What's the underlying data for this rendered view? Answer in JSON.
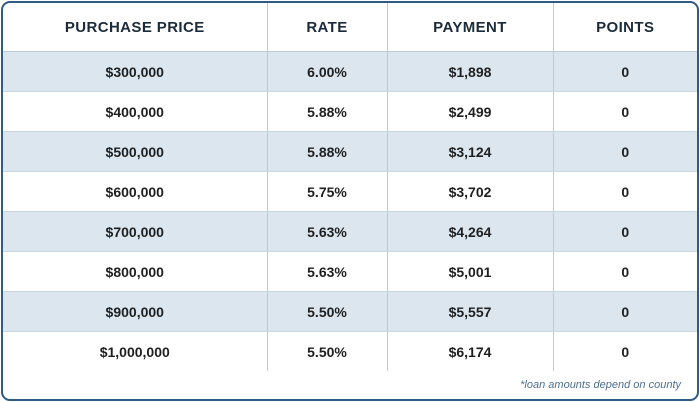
{
  "table": {
    "headers": [
      "PURCHASE PRICE",
      "RATE",
      "PAYMENT",
      "POINTS"
    ],
    "rows": [
      [
        "$300,000",
        "6.00%",
        "$1,898",
        "0"
      ],
      [
        "$400,000",
        "5.88%",
        "$2,499",
        "0"
      ],
      [
        "$500,000",
        "5.88%",
        "$3,124",
        "0"
      ],
      [
        "$600,000",
        "5.75%",
        "$3,702",
        "0"
      ],
      [
        "$700,000",
        "5.63%",
        "$4,264",
        "0"
      ],
      [
        "$800,000",
        "5.63%",
        "$5,001",
        "0"
      ],
      [
        "$900,000",
        "5.50%",
        "$5,557",
        "0"
      ],
      [
        "$1,000,000",
        "5.50%",
        "$6,174",
        "0"
      ]
    ]
  },
  "footnote": "*loan amounts depend on county",
  "colors": {
    "border": "#2f5b85",
    "stripe": "#dbe6ef",
    "header_text": "#1c2b3a",
    "footnote_text": "#4f6f8f"
  }
}
